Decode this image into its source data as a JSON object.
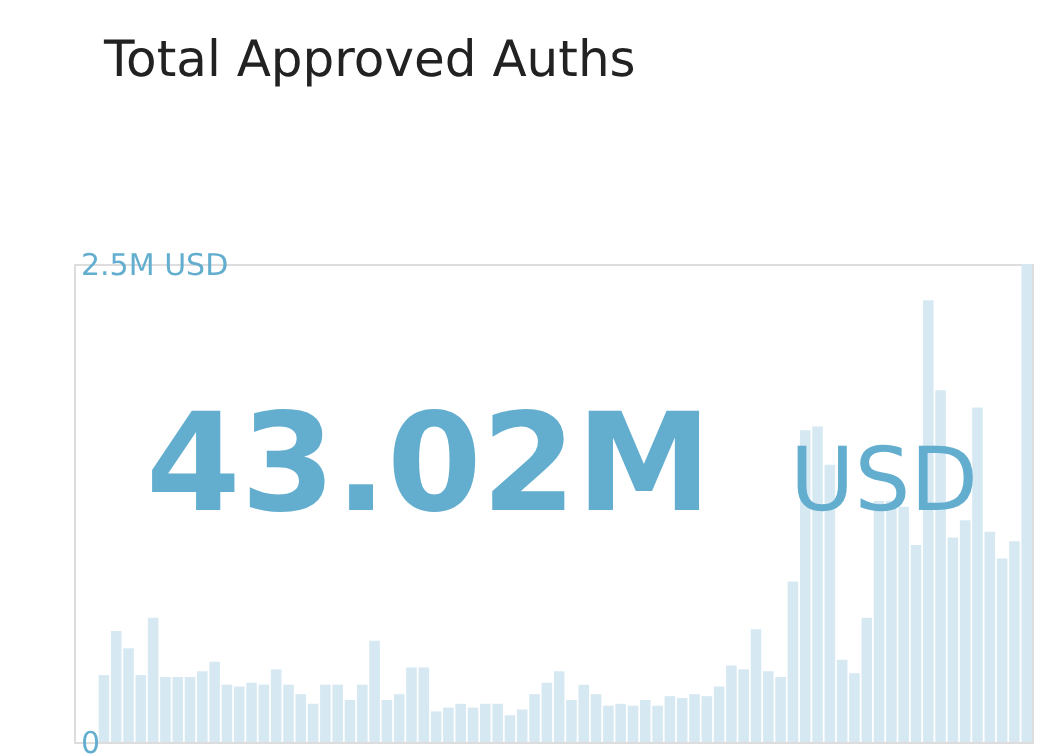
{
  "chart_data": {
    "type": "bar",
    "title": "Total Approved Auths",
    "annotations": [
      "43.02M",
      "USD"
    ],
    "categories": [
      null,
      null,
      null,
      null,
      null,
      null,
      null,
      null,
      null,
      null,
      null,
      null,
      null,
      null,
      null,
      null,
      null,
      null,
      null,
      null,
      null,
      null,
      null,
      null,
      null,
      null,
      null,
      null,
      null,
      null,
      null,
      null,
      null,
      null,
      null,
      null,
      null,
      null,
      null,
      null,
      null,
      null,
      null,
      null,
      null,
      null,
      null,
      null,
      null,
      null,
      null,
      null,
      null,
      null,
      null,
      null,
      null,
      null,
      null,
      null,
      null,
      null,
      null,
      null,
      null,
      null,
      null,
      null,
      null,
      null,
      null,
      null,
      null,
      null,
      null,
      null
    ],
    "values": [
      0.35,
      0.58,
      0.49,
      0.35,
      0.65,
      0.34,
      0.34,
      0.34,
      0.37,
      0.42,
      0.3,
      0.29,
      0.31,
      0.3,
      0.38,
      0.3,
      0.25,
      0.2,
      0.3,
      0.3,
      0.22,
      0.3,
      0.53,
      0.22,
      0.25,
      0.39,
      0.39,
      0.16,
      0.18,
      0.2,
      0.18,
      0.2,
      0.2,
      0.14,
      0.17,
      0.25,
      0.31,
      0.37,
      0.22,
      0.3,
      0.25,
      0.19,
      0.2,
      0.19,
      0.22,
      0.19,
      0.24,
      0.23,
      0.25,
      0.24,
      0.29,
      0.4,
      0.38,
      0.59,
      0.37,
      0.34,
      0.84,
      1.63,
      1.65,
      1.45,
      0.43,
      0.36,
      0.65,
      1.26,
      1.26,
      1.23,
      1.03,
      2.31,
      1.84,
      1.07,
      1.16,
      1.75,
      1.1,
      0.96,
      1.05,
      2.5
    ],
    "color": "#d6e9f3",
    "ylim": [
      0,
      2.5
    ],
    "yticks": [
      0,
      {
        "value": 2.5,
        "label": "2.5M USD"
      }
    ],
    "grid": false
  }
}
